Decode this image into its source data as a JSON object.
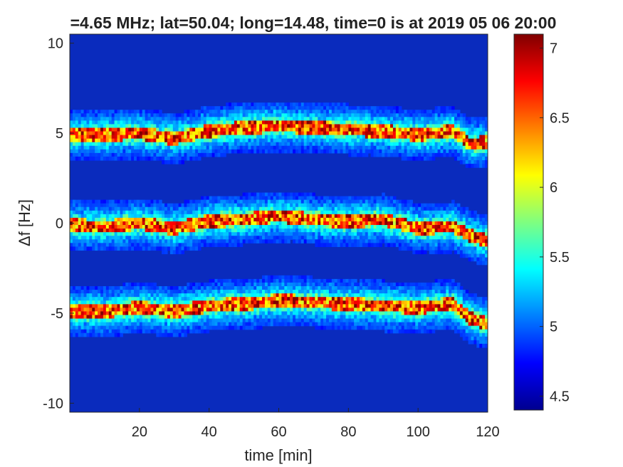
{
  "chart_data": {
    "type": "heatmap",
    "title": "=4.65 MHz;  lat=50.04; long=14.48, time=0 is at 2019 05 06 20:00",
    "xlabel": "time [min]",
    "ylabel": "Δf [Hz]",
    "xlim": [
      0,
      120
    ],
    "ylim": [
      -10.5,
      10.5
    ],
    "xticks": [
      20,
      40,
      60,
      80,
      100,
      120
    ],
    "xtick_labels": [
      "20",
      "40",
      "60",
      "80",
      "100",
      "120"
    ],
    "yticks": [
      10,
      5,
      0,
      -5,
      -10
    ],
    "ytick_labels": [
      "10",
      "5",
      "0",
      "-5",
      "-10"
    ],
    "colormap": "jet",
    "colorbar": {
      "range": [
        4.4,
        7.1
      ],
      "ticks": [
        7,
        6.5,
        6,
        5.5,
        5,
        4.5
      ],
      "tick_labels": [
        "7",
        "6.5",
        "6",
        "5.5",
        "5",
        "4.5"
      ]
    },
    "background_value": 4.6,
    "series": [
      {
        "time_min": [
          0,
          10,
          20,
          30,
          40,
          50,
          60,
          70,
          80,
          90,
          100,
          110,
          115,
          120
        ],
        "df_hz": [
          4.9,
          4.9,
          5.0,
          4.7,
          5.1,
          5.3,
          5.4,
          5.3,
          5.2,
          5.1,
          4.9,
          5.1,
          4.4,
          4.5
        ]
      },
      {
        "time_min": [
          0,
          10,
          20,
          30,
          40,
          50,
          60,
          70,
          80,
          90,
          100,
          110,
          115,
          120
        ],
        "df_hz": [
          -0.1,
          -0.2,
          0.0,
          -0.3,
          0.1,
          0.2,
          0.4,
          0.2,
          0.1,
          0.2,
          -0.3,
          -0.2,
          -0.7,
          -1.0
        ]
      },
      {
        "time_min": [
          0,
          10,
          20,
          30,
          40,
          50,
          60,
          70,
          80,
          90,
          100,
          110,
          115,
          120
        ],
        "df_hz": [
          -4.9,
          -4.9,
          -4.7,
          -4.9,
          -4.6,
          -4.5,
          -4.3,
          -4.4,
          -4.5,
          -4.6,
          -4.7,
          -4.5,
          -5.3,
          -5.6
        ]
      }
    ]
  }
}
